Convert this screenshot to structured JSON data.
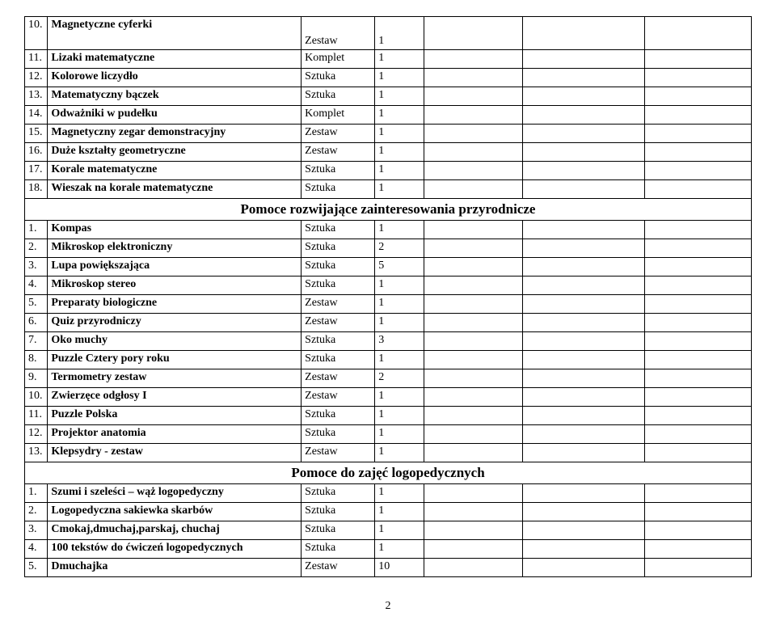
{
  "page_number": "2",
  "sections": [
    {
      "rows": [
        {
          "num": "10.",
          "name": "Magnetyczne cyferki",
          "unit": "Zestaw",
          "qty": "1",
          "tall": true
        },
        {
          "num": "11.",
          "name": "Lizaki matematyczne",
          "unit": "Komplet",
          "qty": "1"
        },
        {
          "num": "12.",
          "name": "Kolorowe liczydło",
          "unit": "Sztuka",
          "qty": "1"
        },
        {
          "num": "13.",
          "name": "Matematyczny bączek",
          "unit": "Sztuka",
          "qty": "1"
        },
        {
          "num": "14.",
          "name": "Odważniki w pudełku",
          "unit": "Komplet",
          "qty": "1"
        },
        {
          "num": "15.",
          "name": "Magnetyczny zegar demonstracyjny",
          "unit": "Zestaw",
          "qty": "1"
        },
        {
          "num": "16.",
          "name": "Duże kształty geometryczne",
          "unit": "Zestaw",
          "qty": "1"
        },
        {
          "num": "17.",
          "name": "Korale matematyczne",
          "unit": "Sztuka",
          "qty": "1"
        },
        {
          "num": "18.",
          "name": "Wieszak na korale matematyczne",
          "unit": "Sztuka",
          "qty": "1"
        }
      ]
    },
    {
      "title": "Pomoce rozwijające zainteresowania przyrodnicze",
      "rows": [
        {
          "num": "1.",
          "name": "Kompas",
          "unit": "Sztuka",
          "qty": "1"
        },
        {
          "num": "2.",
          "name": "Mikroskop elektroniczny",
          "unit": "Sztuka",
          "qty": "2"
        },
        {
          "num": "3.",
          "name": "Lupa powiększająca",
          "unit": "Sztuka",
          "qty": "5"
        },
        {
          "num": "4.",
          "name": "Mikroskop stereo",
          "unit": "Sztuka",
          "qty": "1"
        },
        {
          "num": "5.",
          "name": "Preparaty biologiczne",
          "unit": "Zestaw",
          "qty": "1"
        },
        {
          "num": "6.",
          "name": "Quiz przyrodniczy",
          "unit": "Zestaw",
          "qty": "1"
        },
        {
          "num": "7.",
          "name": "Oko muchy",
          "unit": "Sztuka",
          "qty": "3"
        },
        {
          "num": "8.",
          "name": "Puzzle Cztery pory roku",
          "unit": "Sztuka",
          "qty": "1"
        },
        {
          "num": "9.",
          "name": "Termometry zestaw",
          "unit": "Zestaw",
          "qty": "2"
        },
        {
          "num": "10.",
          "name": "Zwierzęce odgłosy I",
          "unit": "Zestaw",
          "qty": "1"
        },
        {
          "num": "11.",
          "name": "Puzzle Polska",
          "unit": "Sztuka",
          "qty": "1"
        },
        {
          "num": "12.",
          "name": "Projektor anatomia",
          "unit": "Sztuka",
          "qty": "1"
        },
        {
          "num": "13.",
          "name": "Klepsydry - zestaw",
          "unit": "Zestaw",
          "qty": "1"
        }
      ]
    },
    {
      "title": "Pomoce do zajęć logopedycznych",
      "rows": [
        {
          "num": "1.",
          "name": "Szumi i szeleści – wąż logopedyczny",
          "unit": "Sztuka",
          "qty": "1"
        },
        {
          "num": "2.",
          "name": "Logopedyczna sakiewka skarbów",
          "unit": "Sztuka",
          "qty": "1"
        },
        {
          "num": "3.",
          "name": "Cmokaj,dmuchaj,parskaj, chuchaj",
          "unit": "Sztuka",
          "qty": "1"
        },
        {
          "num": "4.",
          "name": "100 tekstów do ćwiczeń logopedycznych",
          "unit": "Sztuka",
          "qty": "1"
        },
        {
          "num": "5.",
          "name": "Dmuchajka",
          "unit": "Zestaw",
          "qty": "10"
        }
      ]
    }
  ]
}
